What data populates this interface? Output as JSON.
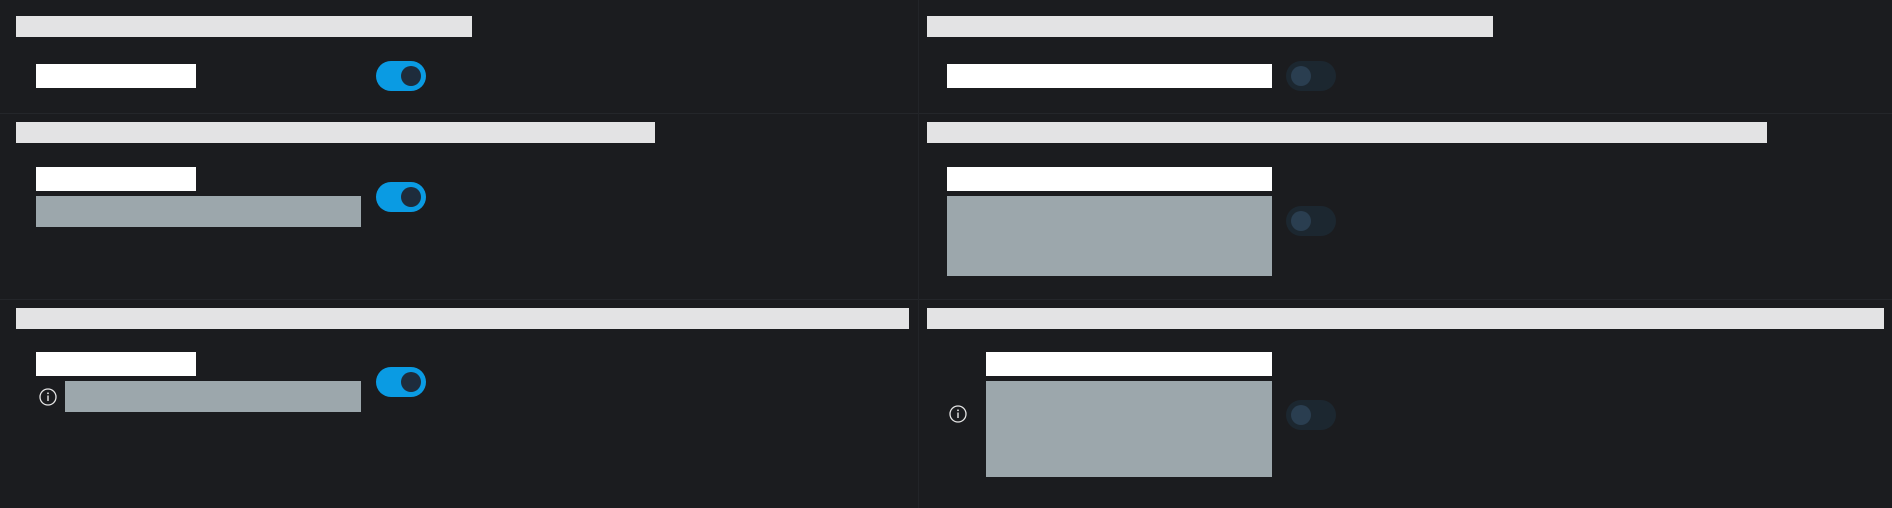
{
  "settings": {
    "left": [
      {
        "id": "l1",
        "toggle_on": true,
        "has_description": false,
        "has_info_icon": false
      },
      {
        "id": "l2",
        "toggle_on": true,
        "has_description": true,
        "has_info_icon": false
      },
      {
        "id": "l3",
        "toggle_on": true,
        "has_description": true,
        "has_info_icon": true
      }
    ],
    "right": [
      {
        "id": "r1",
        "toggle_on": false,
        "has_description": false,
        "has_info_icon": false
      },
      {
        "id": "r2",
        "toggle_on": false,
        "has_description": true,
        "has_info_icon": false
      },
      {
        "id": "r3",
        "toggle_on": false,
        "has_description": true,
        "has_info_icon": true
      }
    ]
  },
  "icons": {
    "info": "info-circle-icon"
  },
  "colors": {
    "background": "#1b1c1f",
    "toggle_on": "#0a9be3",
    "toggle_off": "#1c2730",
    "title_placeholder": "#e3e3e4",
    "label_placeholder": "#ffffff",
    "description_placeholder": "#9ca7ac"
  }
}
